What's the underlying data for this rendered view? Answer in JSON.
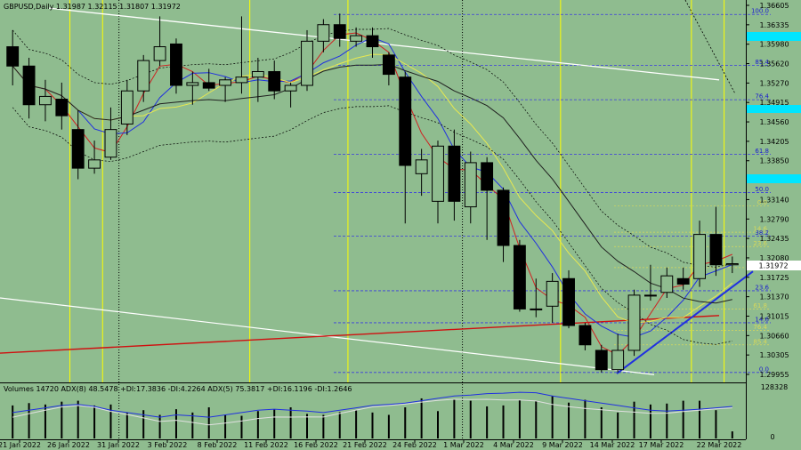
{
  "header": {
    "symbol_line": "GBPUSD,Daily  1.31987 1.32115 1.31807 1.31972"
  },
  "indicator_header": {
    "text": "Volumes 14720  ADX(8) 48.5478 +DI:17.3836 -DI:4.2264  ADX(5) 75.3817 +DI:16.1196 -DI:1.2646"
  },
  "colors": {
    "background": "#8fbc8f",
    "bull_candle": "#8fbc8f",
    "bear_candle": "#000000",
    "grid_dashed": "#3a3ae0",
    "vline_yellow": "#ffff00",
    "ma_red": "#d02020",
    "ma_blue": "#2030e0",
    "ma_yellow": "#e8e850",
    "ma_black": "#202020",
    "trend_white": "#ffffff",
    "trend_blue": "#2030e0",
    "trend_red": "#d01010",
    "price_box": "#00e5ff"
  },
  "chart_data": {
    "type": "candlestick",
    "y_ticks": [
      "1.36605",
      "1.36335",
      "1.35980",
      "1.35620",
      "1.35270",
      "1.34915",
      "1.34560",
      "1.34205",
      "1.33850",
      "1.33495",
      "1.33140",
      "1.32790",
      "1.32435",
      "1.32080",
      "1.31725",
      "1.31370",
      "1.31015",
      "1.30660",
      "1.30305",
      "1.29955"
    ],
    "ylim": [
      1.299,
      1.3665
    ],
    "x_labels": [
      "21 Jan 2022",
      "26 Jan 2022",
      "31 Jan 2022",
      "3 Feb 2022",
      "8 Feb 2022",
      "11 Feb 2022",
      "16 Feb 2022",
      "21 Feb 2022",
      "24 Feb 2022",
      "1 Mar 2022",
      "4 Mar 2022",
      "9 Mar 2022",
      "14 Mar 2022",
      "17 Mar 2022",
      "22 Mar 2022"
    ],
    "current_price_label": "1.31972",
    "candles": [
      {
        "o": 1.359,
        "h": 1.362,
        "l": 1.352,
        "c": 1.3555
      },
      {
        "o": 1.3555,
        "h": 1.357,
        "l": 1.346,
        "c": 1.3485
      },
      {
        "o": 1.3485,
        "h": 1.353,
        "l": 1.3455,
        "c": 1.35
      },
      {
        "o": 1.3495,
        "h": 1.3525,
        "l": 1.344,
        "c": 1.3465
      },
      {
        "o": 1.344,
        "h": 1.3475,
        "l": 1.335,
        "c": 1.337
      },
      {
        "o": 1.337,
        "h": 1.342,
        "l": 1.336,
        "c": 1.3385
      },
      {
        "o": 1.339,
        "h": 1.348,
        "l": 1.3385,
        "c": 1.344
      },
      {
        "o": 1.345,
        "h": 1.353,
        "l": 1.343,
        "c": 1.351
      },
      {
        "o": 1.351,
        "h": 1.3575,
        "l": 1.349,
        "c": 1.3565
      },
      {
        "o": 1.3565,
        "h": 1.3645,
        "l": 1.3555,
        "c": 1.359
      },
      {
        "o": 1.3595,
        "h": 1.3605,
        "l": 1.3505,
        "c": 1.352
      },
      {
        "o": 1.352,
        "h": 1.3545,
        "l": 1.3485,
        "c": 1.3525
      },
      {
        "o": 1.3525,
        "h": 1.355,
        "l": 1.351,
        "c": 1.3515
      },
      {
        "o": 1.352,
        "h": 1.3535,
        "l": 1.349,
        "c": 1.353
      },
      {
        "o": 1.3525,
        "h": 1.3645,
        "l": 1.3505,
        "c": 1.3535
      },
      {
        "o": 1.3535,
        "h": 1.357,
        "l": 1.349,
        "c": 1.3545
      },
      {
        "o": 1.3545,
        "h": 1.3565,
        "l": 1.3495,
        "c": 1.351
      },
      {
        "o": 1.351,
        "h": 1.3525,
        "l": 1.348,
        "c": 1.352
      },
      {
        "o": 1.352,
        "h": 1.362,
        "l": 1.351,
        "c": 1.36
      },
      {
        "o": 1.36,
        "h": 1.364,
        "l": 1.358,
        "c": 1.363
      },
      {
        "o": 1.363,
        "h": 1.365,
        "l": 1.359,
        "c": 1.3605
      },
      {
        "o": 1.36,
        "h": 1.3625,
        "l": 1.359,
        "c": 1.361
      },
      {
        "o": 1.361,
        "h": 1.3625,
        "l": 1.357,
        "c": 1.359
      },
      {
        "o": 1.3575,
        "h": 1.358,
        "l": 1.352,
        "c": 1.354
      },
      {
        "o": 1.3535,
        "h": 1.3545,
        "l": 1.327,
        "c": 1.3375
      },
      {
        "o": 1.336,
        "h": 1.3405,
        "l": 1.332,
        "c": 1.3385
      },
      {
        "o": 1.331,
        "h": 1.342,
        "l": 1.327,
        "c": 1.341
      },
      {
        "o": 1.341,
        "h": 1.344,
        "l": 1.3275,
        "c": 1.331
      },
      {
        "o": 1.33,
        "h": 1.34,
        "l": 1.327,
        "c": 1.338
      },
      {
        "o": 1.338,
        "h": 1.339,
        "l": 1.324,
        "c": 1.333
      },
      {
        "o": 1.333,
        "h": 1.3335,
        "l": 1.32,
        "c": 1.323
      },
      {
        "o": 1.323,
        "h": 1.324,
        "l": 1.311,
        "c": 1.3115
      },
      {
        "o": 1.3115,
        "h": 1.317,
        "l": 1.31,
        "c": 1.3115
      },
      {
        "o": 1.312,
        "h": 1.318,
        "l": 1.309,
        "c": 1.3165
      },
      {
        "o": 1.317,
        "h": 1.3185,
        "l": 1.308,
        "c": 1.3085
      },
      {
        "o": 1.3085,
        "h": 1.309,
        "l": 1.304,
        "c": 1.305
      },
      {
        "o": 1.304,
        "h": 1.305,
        "l": 1.3,
        "c": 1.3005
      },
      {
        "o": 1.3005,
        "h": 1.307,
        "l": 1.3,
        "c": 1.304
      },
      {
        "o": 1.304,
        "h": 1.315,
        "l": 1.303,
        "c": 1.314
      },
      {
        "o": 1.314,
        "h": 1.3195,
        "l": 1.313,
        "c": 1.314
      },
      {
        "o": 1.3145,
        "h": 1.319,
        "l": 1.3135,
        "c": 1.3175
      },
      {
        "o": 1.317,
        "h": 1.319,
        "l": 1.315,
        "c": 1.316
      },
      {
        "o": 1.317,
        "h": 1.3275,
        "l": 1.3155,
        "c": 1.325
      },
      {
        "o": 1.325,
        "h": 1.33,
        "l": 1.3175,
        "c": 1.3195
      },
      {
        "o": 1.3195,
        "h": 1.321,
        "l": 1.318,
        "c": 1.3197
      }
    ],
    "volumes": [
      0.7,
      0.75,
      0.72,
      0.78,
      0.8,
      0.7,
      0.72,
      0.55,
      0.6,
      0.5,
      0.62,
      0.55,
      0.66,
      0.5,
      0.48,
      0.58,
      0.62,
      0.66,
      0.52,
      0.5,
      0.56,
      0.6,
      0.55,
      0.5,
      0.66,
      0.85,
      0.58,
      0.82,
      0.8,
      0.68,
      0.7,
      0.82,
      0.8,
      0.9,
      0.76,
      0.82,
      0.66,
      0.55,
      0.78,
      0.72,
      0.74,
      0.8,
      0.8,
      0.6,
      0.15
    ],
    "fib_levels": [
      {
        "label": "100.0",
        "v": 1.36485
      },
      {
        "label": "85.4",
        "v": 1.3556
      },
      {
        "label": "76.4",
        "v": 1.3494
      },
      {
        "label": "61.8",
        "v": 1.3395
      },
      {
        "label": "50.0",
        "v": 1.3326
      },
      {
        "label": "38.2",
        "v": 1.3247
      },
      {
        "label": "23.6",
        "v": 1.3148
      },
      {
        "label": "14.6",
        "v": 1.309
      },
      {
        "label": "0.0",
        "v": 1.3
      }
    ],
    "fib_small": [
      {
        "label": "0.0",
        "v": 1.3302
      },
      {
        "label": "14.6",
        "v": 1.3254
      },
      {
        "label": "23.6",
        "v": 1.3228
      },
      {
        "label": "38.2",
        "v": 1.319
      },
      {
        "label": "61.8",
        "v": 1.3115
      },
      {
        "label": "76.4",
        "v": 1.3076
      },
      {
        "label": "85.4",
        "v": 1.305
      }
    ]
  }
}
